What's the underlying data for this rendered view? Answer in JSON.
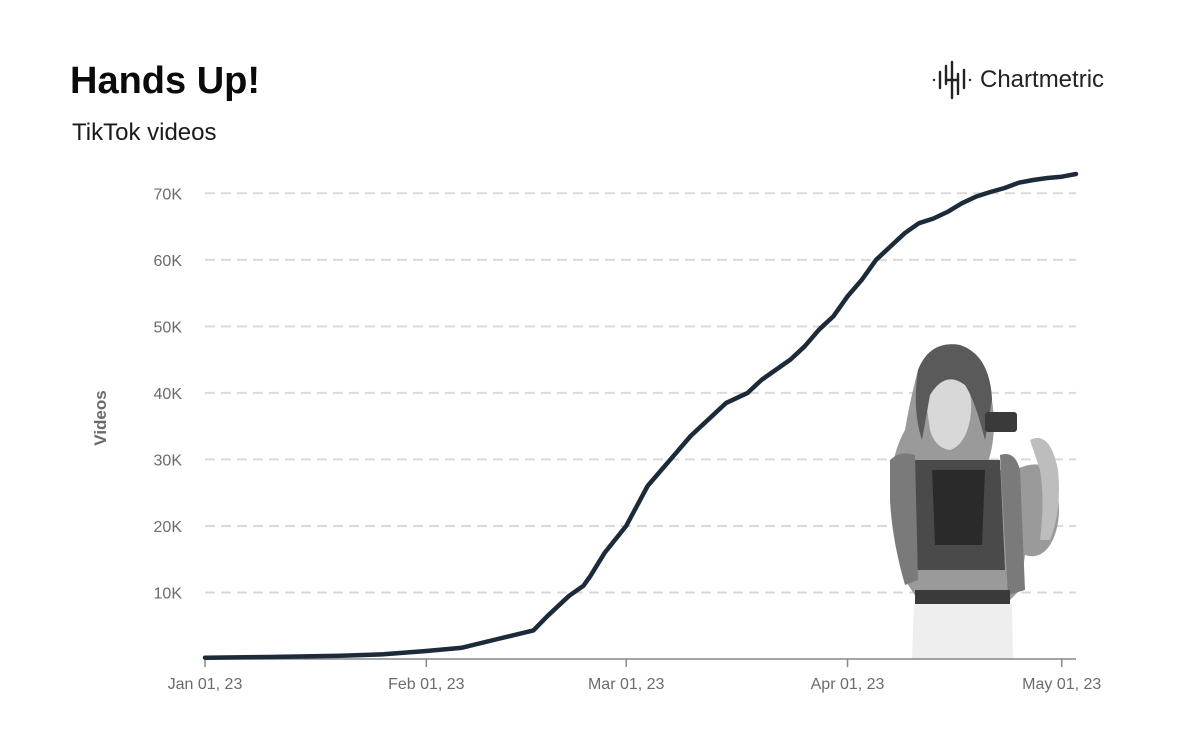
{
  "header": {
    "title": "Hands Up!",
    "subtitle": "TikTok videos",
    "brand_name": "Chartmetric",
    "brand_icon": "chartmetric-logo-icon"
  },
  "colors": {
    "line": "#1c2a3a",
    "grid": "#d9d9d9",
    "axis": "#888888",
    "text": "#6b6b6b"
  },
  "artist_photo": "artist-photo-grayscale",
  "chart_data": {
    "type": "line",
    "title": "Hands Up!",
    "subtitle": "TikTok videos",
    "xlabel": "",
    "ylabel": "Videos",
    "ylim": [
      0,
      72000
    ],
    "xlim": [
      "2023-01-01",
      "2023-05-03"
    ],
    "y_ticks": [
      10000,
      20000,
      30000,
      40000,
      50000,
      60000,
      70000
    ],
    "y_tick_labels": [
      "10K",
      "20K",
      "30K",
      "40K",
      "50K",
      "60K",
      "70K"
    ],
    "x_ticks": [
      "2023-01-01",
      "2023-02-01",
      "2023-03-01",
      "2023-04-01",
      "2023-05-01"
    ],
    "x_tick_labels": [
      "Jan 01, 23",
      "Feb 01, 23",
      "Mar 01, 23",
      "Apr 01, 23",
      "May 01, 23"
    ],
    "grid": true,
    "series": [
      {
        "x": [
          "2023-01-01",
          "2023-01-10",
          "2023-01-20",
          "2023-01-26",
          "2023-02-01",
          "2023-02-06",
          "2023-02-11",
          "2023-02-16",
          "2023-02-18",
          "2023-02-21",
          "2023-02-23",
          "2023-02-24",
          "2023-02-26",
          "2023-03-01",
          "2023-03-04",
          "2023-03-06",
          "2023-03-08",
          "2023-03-10",
          "2023-03-11",
          "2023-03-13",
          "2023-03-15",
          "2023-03-18",
          "2023-03-20",
          "2023-03-22",
          "2023-03-24",
          "2023-03-26",
          "2023-03-28",
          "2023-03-30",
          "2023-04-01",
          "2023-04-03",
          "2023-04-05",
          "2023-04-07",
          "2023-04-09",
          "2023-04-11",
          "2023-04-13",
          "2023-04-15",
          "2023-04-17",
          "2023-04-19",
          "2023-04-21",
          "2023-04-23",
          "2023-04-25",
          "2023-04-27",
          "2023-04-29",
          "2023-05-01",
          "2023-05-02",
          "2023-05-03"
        ],
        "values": [
          200,
          300,
          500,
          700,
          1200,
          1700,
          3000,
          4300,
          6500,
          9500,
          11000,
          12500,
          16000,
          20000,
          26000,
          28500,
          31000,
          33500,
          34500,
          36500,
          38500,
          40000,
          42000,
          43500,
          45000,
          47000,
          49500,
          51500,
          54500,
          57000,
          60000,
          62000,
          64000,
          65500,
          66200,
          67200,
          68500,
          69500,
          70200,
          70800,
          71600,
          72000,
          72300,
          72500,
          72700,
          72900
        ]
      }
    ]
  }
}
